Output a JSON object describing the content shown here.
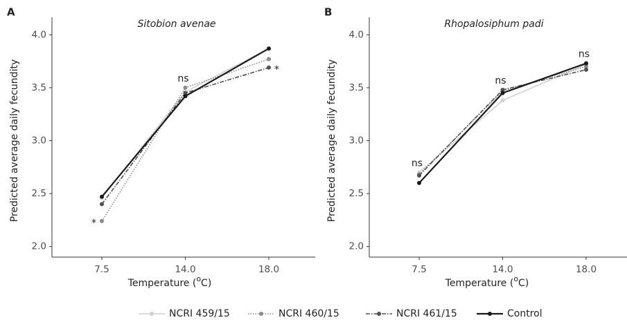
{
  "chart_data": [
    {
      "type": "line",
      "panel": "A",
      "title": "Sitobion avenae",
      "ylabel": "Predicted average daily fecundity",
      "xlabel": {
        "pre": "Temperature (",
        "sup": "o",
        "post": "C)"
      },
      "categories": [
        "7.5",
        "14.0",
        "18.0"
      ],
      "series": [
        {
          "name": "NCRI 459/15",
          "color": "#d0d0d0",
          "dash": "solid",
          "values": [
            2.46,
            3.46,
            3.87
          ]
        },
        {
          "name": "NCRI 460/15",
          "color": "#8a8a8a",
          "dash": "dotted",
          "values": [
            2.24,
            3.5,
            3.77
          ]
        },
        {
          "name": "NCRI 461/15",
          "color": "#4f4f4f",
          "dash": "dashdot",
          "values": [
            2.4,
            3.45,
            3.69
          ]
        },
        {
          "name": "Control",
          "color": "#1a1a1a",
          "dash": "solid",
          "values": [
            2.47,
            3.42,
            3.87
          ]
        }
      ],
      "annotations": [
        {
          "text": "*",
          "category": 0,
          "series": 1
        },
        {
          "text": "ns",
          "category": 1
        },
        {
          "text": "*",
          "category": 2,
          "series": 2
        }
      ],
      "ylim": [
        1.9,
        4.1
      ],
      "yticks": [
        {
          "value": 2,
          "label": "2.0"
        },
        {
          "value": 2.5,
          "label": "2.5"
        },
        {
          "value": 3,
          "label": "3.0"
        },
        {
          "value": 3.5,
          "label": "3.5"
        },
        {
          "value": 4,
          "label": "4.0"
        }
      ]
    },
    {
      "type": "line",
      "panel": "B",
      "title": "Rhopalosiphum padi",
      "ylabel": "Predicted average daily fecundity",
      "xlabel": {
        "pre": "Temperature (",
        "sup": "o",
        "post": "C)"
      },
      "categories": [
        "7.5",
        "14.0",
        "18.0"
      ],
      "series": [
        {
          "color": "#d0d0d0",
          "dash": "solid",
          "values": [
            2.7,
            3.38,
            3.72
          ]
        },
        {
          "color": "#8a8a8a",
          "dash": "dotted",
          "values": [
            2.68,
            3.47,
            3.7
          ]
        },
        {
          "color": "#4f4f4f",
          "dash": "dashdot",
          "values": [
            2.67,
            3.48,
            3.67
          ]
        },
        {
          "color": "#1a1a1a",
          "dash": "solid",
          "values": [
            2.6,
            3.45,
            3.73
          ]
        }
      ],
      "annotations": [
        {
          "text": "ns",
          "category": 0
        },
        {
          "text": "ns",
          "category": 1
        },
        {
          "text": "ns",
          "category": 2
        }
      ],
      "ylim": [
        1.9,
        4.1
      ],
      "yticks": [
        {
          "value": 2,
          "label": "2.0"
        },
        {
          "value": 2.5,
          "label": "2.5"
        },
        {
          "value": 3,
          "label": "3.0"
        },
        {
          "value": 3.5,
          "label": "3.5"
        },
        {
          "value": 4,
          "label": "4.0"
        }
      ]
    }
  ]
}
